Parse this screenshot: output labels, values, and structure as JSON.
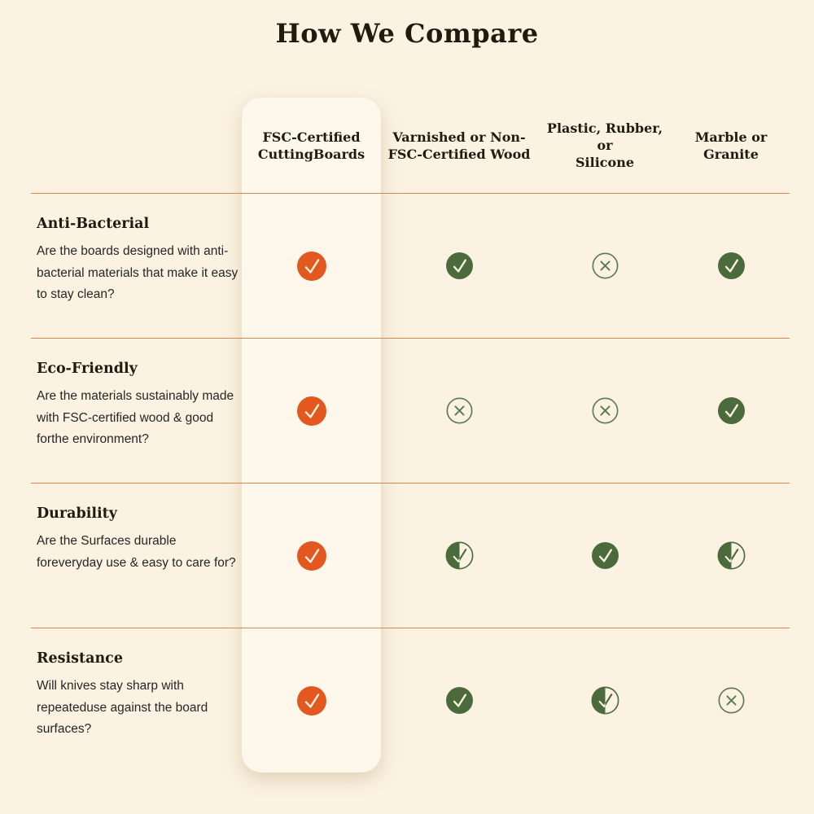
{
  "title": "How We Compare",
  "colors": {
    "background": "#FBF2E2",
    "card": "#FDF7EC",
    "accent_orange": "#E2581E",
    "accent_green": "#4B6B3C",
    "outline_green": "#5C7A4C",
    "divider": "#D28A4D",
    "heading_text": "#201B11",
    "body_text": "#262626"
  },
  "table": {
    "columns": [
      {
        "label": "FSC-Certified\nCuttingBoards",
        "highlighted": true
      },
      {
        "label": "Varnished or Non-\nFSC-Certified Wood",
        "highlighted": false
      },
      {
        "label": "Plastic, Rubber, or\nSilicone",
        "highlighted": false
      },
      {
        "label": "Marble or Granite",
        "highlighted": false
      }
    ],
    "rows": [
      {
        "title": "Anti-Bacterial",
        "description": "Are the boards designed with anti-bacterial materials that make it easy to stay clean?",
        "values": [
          "check-circle-orange",
          "check-circle-green",
          "cross-circle-outline",
          "check-circle-green"
        ]
      },
      {
        "title": "Eco-Friendly",
        "description": "Are the materials sustainably made with FSC-certified wood & good forthe environment?",
        "values": [
          "check-circle-orange",
          "cross-circle-outline",
          "cross-circle-outline",
          "check-circle-green"
        ]
      },
      {
        "title": "Durability",
        "description": "Are the Surfaces durable foreveryday use & easy to care for?",
        "values": [
          "check-circle-orange",
          "check-circle-half",
          "check-circle-green",
          "check-circle-half"
        ]
      },
      {
        "title": "Resistance",
        "description": "Will knives stay sharp with repeateduse against the board surfaces?",
        "values": [
          "check-circle-orange",
          "check-circle-green",
          "check-circle-half",
          "cross-circle-outline"
        ]
      }
    ]
  },
  "icon_legend": {
    "check-circle-orange": "yes (featured product)",
    "check-circle-green": "yes",
    "check-circle-half": "partial",
    "cross-circle-outline": "no"
  },
  "chart_data": {
    "type": "table",
    "title": "How We Compare",
    "columns": [
      "FSC-Certified CuttingBoards",
      "Varnished or Non-FSC-Certified Wood",
      "Plastic, Rubber, or Silicone",
      "Marble or Granite"
    ],
    "row_labels": [
      "Anti-Bacterial",
      "Eco-Friendly",
      "Durability",
      "Resistance"
    ],
    "cells": [
      [
        "yes",
        "yes",
        "no",
        "yes"
      ],
      [
        "yes",
        "no",
        "no",
        "yes"
      ],
      [
        "yes",
        "partial",
        "yes",
        "partial"
      ],
      [
        "yes",
        "yes",
        "partial",
        "no"
      ]
    ]
  }
}
